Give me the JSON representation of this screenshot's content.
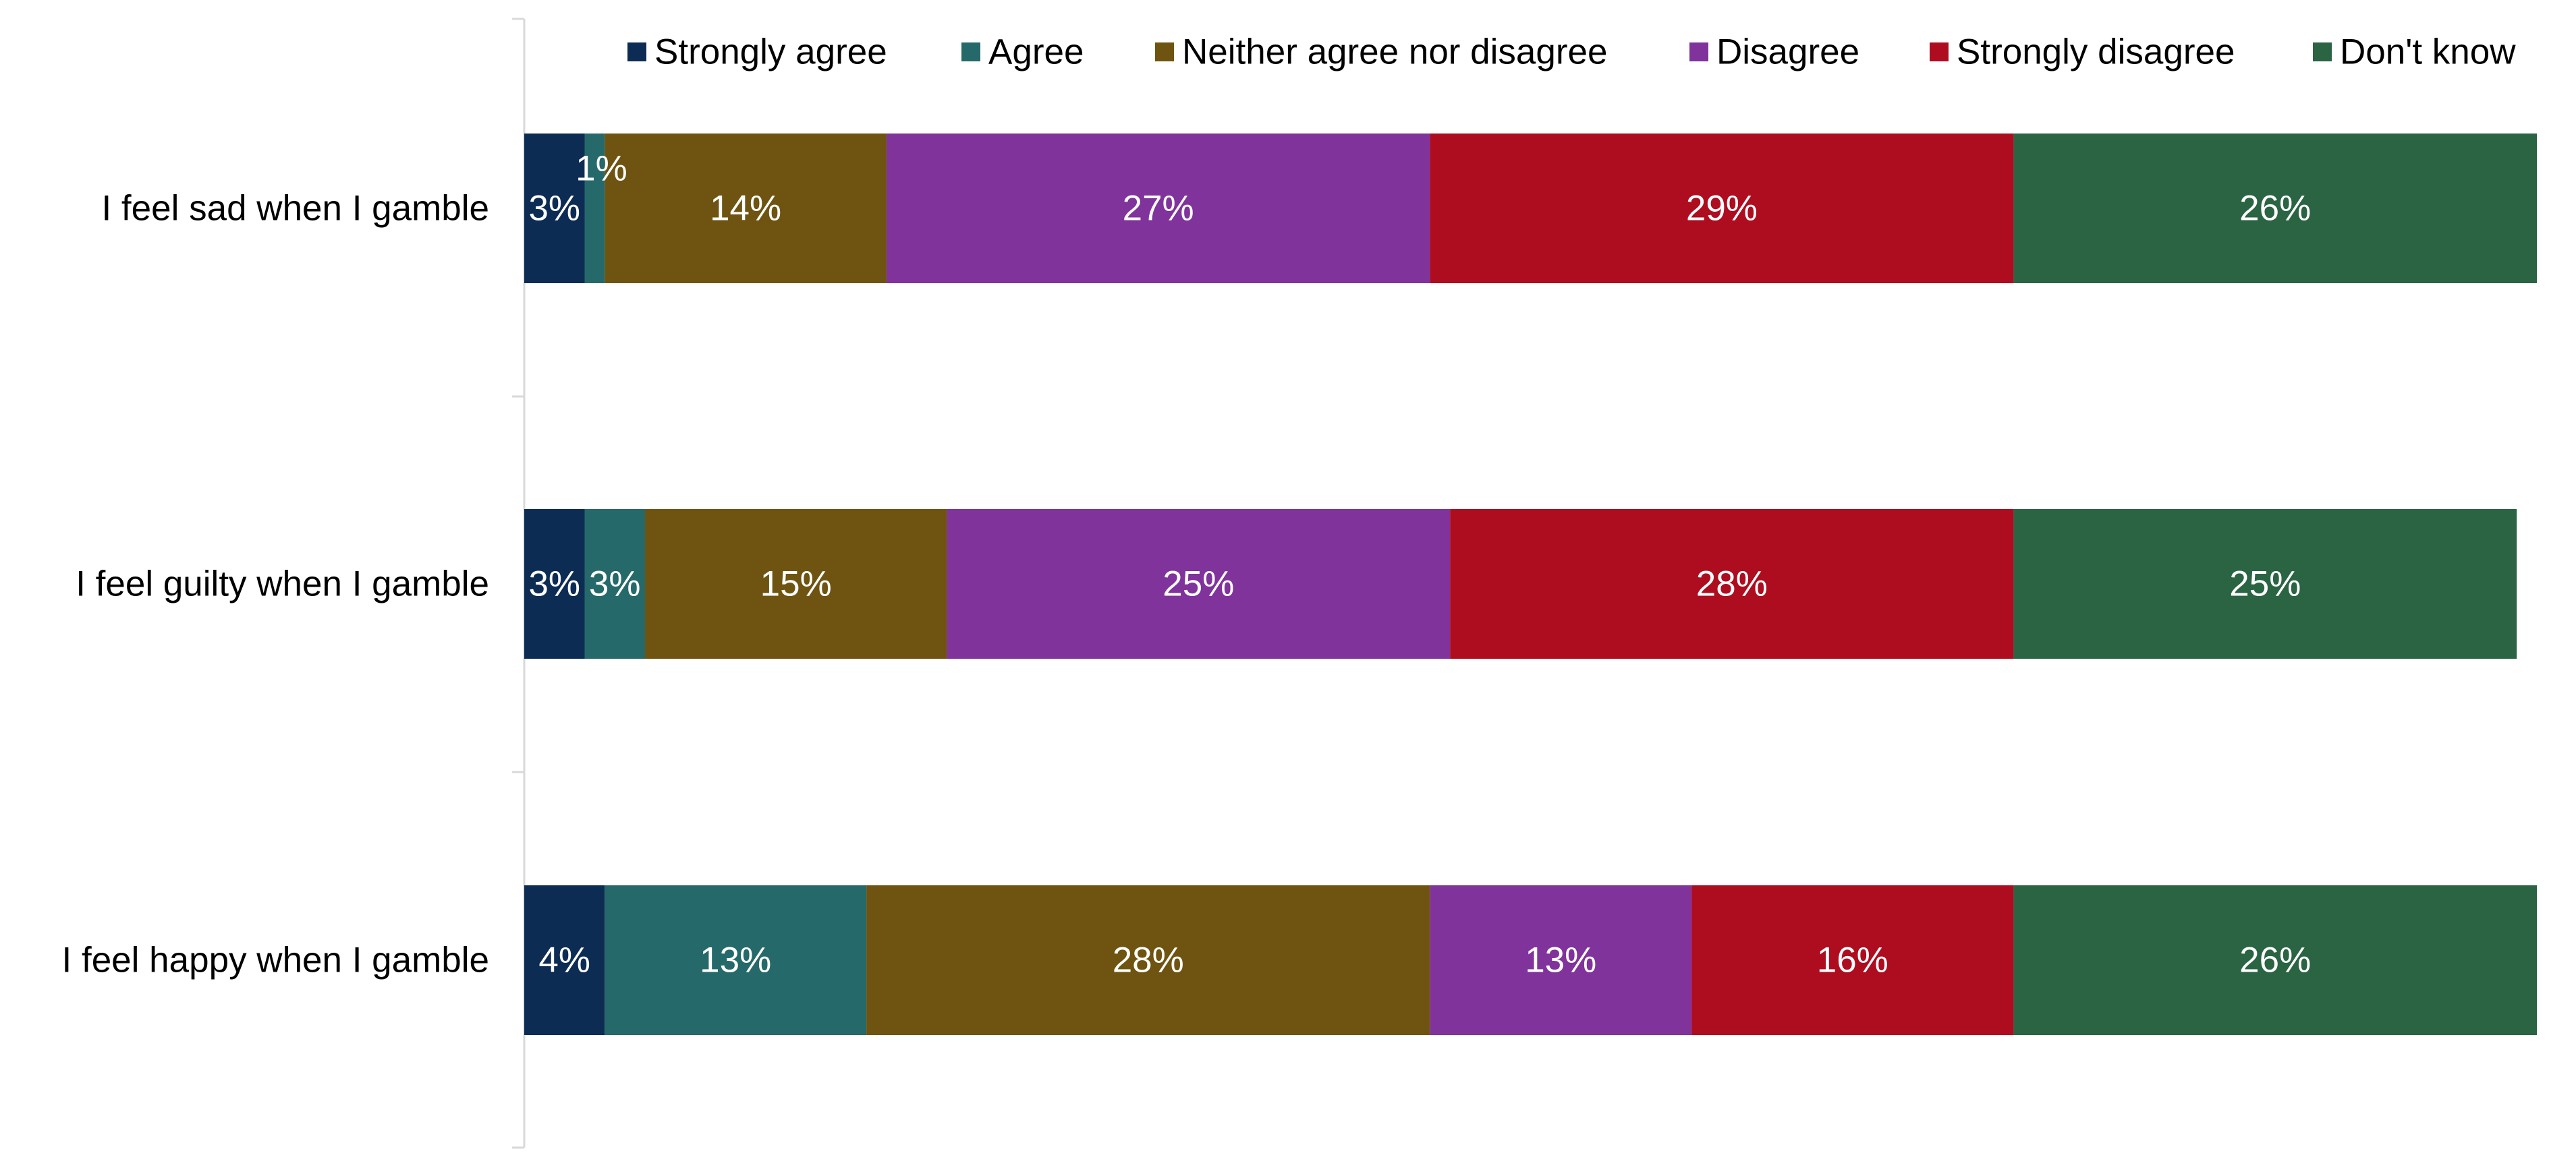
{
  "chart_data": {
    "type": "bar",
    "orientation": "horizontal",
    "stacked": true,
    "title": "",
    "xlabel": "",
    "ylabel": "",
    "xlim": [
      0,
      100
    ],
    "grid": false,
    "legend_position": "top",
    "categories": [
      "I feel sad when I gamble",
      "I feel guilty when I gamble",
      "I feel happy when I gamble"
    ],
    "series": [
      {
        "name": "Strongly agree",
        "color": "#0d2c54",
        "values": [
          3,
          3,
          4
        ],
        "labels": [
          "3%",
          "3%",
          "4%"
        ]
      },
      {
        "name": "Agree",
        "color": "#26696a",
        "values": [
          1,
          3,
          13
        ],
        "labels": [
          "1%",
          "3%",
          "13%"
        ]
      },
      {
        "name": "Neither agree nor disagree",
        "color": "#6e5410",
        "values": [
          14,
          15,
          28
        ],
        "labels": [
          "14%",
          "15%",
          "28%"
        ]
      },
      {
        "name": "Disagree",
        "color": "#7f339b",
        "values": [
          27,
          25,
          13
        ],
        "labels": [
          "27%",
          "25%",
          "13%"
        ]
      },
      {
        "name": "Strongly disagree",
        "color": "#ad0d1f",
        "values": [
          29,
          28,
          16
        ],
        "labels": [
          "29%",
          "28%",
          "16%"
        ]
      },
      {
        "name": "Don't know",
        "color": "#2a6443",
        "values": [
          26,
          25,
          26
        ],
        "labels": [
          "26%",
          "25%",
          "26%"
        ]
      }
    ]
  }
}
